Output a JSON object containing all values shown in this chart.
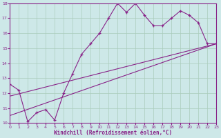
{
  "xlabel": "Windchill (Refroidissement éolien,°C)",
  "xlim": [
    0,
    23
  ],
  "ylim": [
    10,
    18
  ],
  "xticks": [
    0,
    1,
    2,
    3,
    4,
    5,
    6,
    7,
    8,
    9,
    10,
    11,
    12,
    13,
    14,
    15,
    16,
    17,
    18,
    19,
    20,
    21,
    22,
    23
  ],
  "yticks": [
    10,
    11,
    12,
    13,
    14,
    15,
    16,
    17,
    18
  ],
  "bg_color": "#cde8e8",
  "grid_color": "#aaccbb",
  "line_color": "#882288",
  "line1_x": [
    0,
    1,
    2,
    3,
    4,
    5,
    6,
    7,
    8,
    9,
    10,
    11,
    12,
    13,
    14,
    15,
    16,
    17,
    18,
    19,
    20,
    21,
    22,
    23
  ],
  "line1_y": [
    12.6,
    12.2,
    10.1,
    10.7,
    10.9,
    10.2,
    12.0,
    13.3,
    14.6,
    15.3,
    16.0,
    17.0,
    18.0,
    17.4,
    18.0,
    17.2,
    16.5,
    16.5,
    17.0,
    17.5,
    17.2,
    16.7,
    15.3,
    15.3
  ],
  "line2_x": [
    0,
    23
  ],
  "line2_y": [
    10.5,
    15.3
  ],
  "line3_x": [
    0,
    23
  ],
  "line3_y": [
    11.8,
    15.3
  ]
}
